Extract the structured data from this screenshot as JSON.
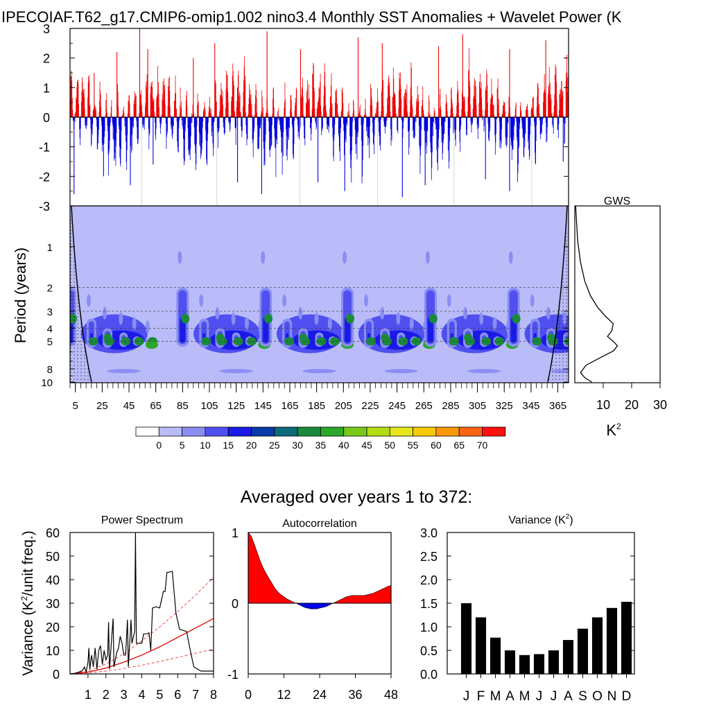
{
  "figure": {
    "title": "IPECOIAF.T62_g17.CMIP6-omip1.002 nino3.4 Monthly SST Anomalies + Wavelet Power (K",
    "subtitle": "Averaged over years 1 to 372:"
  },
  "colors": {
    "positive": "#ee0000",
    "negative": "#0000dd",
    "wavelet_levels": [
      "#ffffff",
      "#b9bcf8",
      "#8a8ef2",
      "#5050f0",
      "#1a1ae6",
      "#0a3aa8",
      "#0f6a7a",
      "#1a8a3a",
      "#2aa82a",
      "#7ac81a",
      "#b4dc14",
      "#e6e61a",
      "#f8c80a",
      "#f89808",
      "#f86410",
      "#ff1010"
    ]
  },
  "chart_data": [
    {
      "id": "anomaly",
      "type": "bar",
      "title": "",
      "xlabel": "",
      "ylabel": "",
      "ylim": [
        -3,
        3
      ],
      "yticks": [
        3,
        2,
        1,
        0,
        -1,
        -2,
        -3
      ],
      "xlim": [
        0,
        372
      ],
      "series": [
        {
          "values_note": "monthly nino3.4 SST anomaly bars, red positive / blue negative, dense oscillation with ~60 yr quasi-period",
          "peaks": [
            [
              18,
              1.5
            ],
            [
              35,
              2.2
            ],
            [
              52,
              3.0
            ],
            [
              58,
              2.3
            ],
            [
              92,
              2.0
            ],
            [
              108,
              2.5
            ],
            [
              147,
              2.9
            ],
            [
              172,
              2.3
            ],
            [
              215,
              2.7
            ],
            [
              233,
              2.5
            ],
            [
              275,
              2.4
            ],
            [
              293,
              2.8
            ],
            [
              328,
              2.3
            ],
            [
              355,
              2.6
            ]
          ],
          "troughs": [
            [
              3,
              -2.6
            ],
            [
              25,
              -2.0
            ],
            [
              45,
              -2.3
            ],
            [
              62,
              -1.6
            ],
            [
              125,
              -2.2
            ],
            [
              143,
              -2.6
            ],
            [
              185,
              -2.2
            ],
            [
              205,
              -2.5
            ],
            [
              248,
              -2.7
            ],
            [
              265,
              -2.3
            ],
            [
              310,
              -2.1
            ],
            [
              328,
              -2.5
            ],
            [
              368,
              -1.5
            ]
          ]
        }
      ]
    },
    {
      "id": "wavelet",
      "type": "heatmap",
      "xlabel": "",
      "ylabel": "Period (years)",
      "x_ticks": [
        "5",
        "25",
        "45",
        "65",
        "85",
        "105",
        "125",
        "145",
        "165",
        "185",
        "205",
        "225",
        "245",
        "265",
        "285",
        "305",
        "325",
        "345",
        "365"
      ],
      "y_ticks": [
        "1",
        "2",
        "3",
        "4",
        "5",
        "8",
        "10"
      ],
      "y_tick_values": [
        1,
        2,
        3,
        4,
        5,
        8,
        10
      ],
      "ylim": [
        0.5,
        10
      ],
      "log_y": true,
      "reference_periods": [
        2,
        3,
        4,
        5
      ],
      "colorbar_labels": [
        "0",
        "5",
        "10",
        "15",
        "20",
        "25",
        "30",
        "35",
        "40",
        "45",
        "50",
        "55",
        "60",
        "65",
        "70"
      ],
      "power_clusters_start_years": [
        1,
        73,
        135,
        196,
        258,
        320
      ],
      "power_peak_level": 35
    },
    {
      "id": "gws",
      "type": "line",
      "title": "GWS",
      "xlabel": "K",
      "x_ticks": [
        "10",
        "20",
        "30"
      ],
      "xlim": [
        0,
        30
      ],
      "points": [
        [
          0.3,
          0.5
        ],
        [
          1.0,
          0.9
        ],
        [
          2.0,
          1.3
        ],
        [
          3.5,
          1.8
        ],
        [
          5.5,
          2.3
        ],
        [
          8.0,
          2.8
        ],
        [
          11.0,
          3.3
        ],
        [
          13.5,
          3.7
        ],
        [
          13.0,
          4.2
        ],
        [
          11.5,
          4.6
        ],
        [
          13.5,
          5.0
        ],
        [
          15.0,
          5.4
        ],
        [
          13.5,
          5.9
        ],
        [
          9.0,
          6.6
        ],
        [
          4.0,
          7.5
        ],
        [
          2.0,
          8.5
        ],
        [
          3.5,
          9.3
        ],
        [
          6.0,
          10.0
        ]
      ]
    },
    {
      "id": "spectrum",
      "type": "line",
      "title": "Power Spectrum",
      "xlabel": "",
      "ylabel": "Variance (K",
      "ylabel_tail": "/unit freq.)",
      "ylim": [
        0,
        60
      ],
      "yticks": [
        "0",
        "10",
        "20",
        "30",
        "40",
        "50",
        "60"
      ],
      "xlim": [
        0,
        8
      ],
      "x_ticks": [
        "1",
        "2",
        "3",
        "4",
        "5",
        "6",
        "7",
        "8"
      ],
      "series": [
        {
          "name": "",
          "style": "black",
          "points": [
            [
              0.0,
              0.0
            ],
            [
              0.3,
              0.3
            ],
            [
              0.5,
              0.8
            ],
            [
              0.7,
              1.5
            ],
            [
              0.8,
              3.0
            ],
            [
              0.9,
              1.0
            ],
            [
              1.0,
              5.0
            ],
            [
              1.05,
              11.0
            ],
            [
              1.1,
              2.0
            ],
            [
              1.2,
              8.0
            ],
            [
              1.3,
              3.0
            ],
            [
              1.4,
              11.0
            ],
            [
              1.5,
              2.0
            ],
            [
              1.6,
              10.0
            ],
            [
              1.7,
              12.0
            ],
            [
              1.8,
              4.0
            ],
            [
              1.9,
              10.0
            ],
            [
              2.0,
              6.0
            ],
            [
              2.1,
              8.0
            ],
            [
              2.15,
              22.0
            ],
            [
              2.2,
              2.0
            ],
            [
              2.4,
              23.5
            ],
            [
              2.45,
              3.0
            ],
            [
              2.6,
              9.0
            ],
            [
              2.7,
              11.0
            ],
            [
              2.8,
              16.0
            ],
            [
              2.9,
              13.0
            ],
            [
              3.0,
              8.0
            ],
            [
              3.1,
              8.0
            ],
            [
              3.2,
              23.0
            ],
            [
              3.25,
              3.0
            ],
            [
              3.4,
              23.0
            ],
            [
              3.45,
              13.0
            ],
            [
              3.6,
              18.0
            ],
            [
              3.65,
              60.0
            ],
            [
              3.7,
              13.0
            ],
            [
              3.8,
              13.0
            ],
            [
              4.0,
              13.0
            ],
            [
              4.1,
              17.0
            ],
            [
              4.3,
              17.0
            ],
            [
              4.4,
              17.5
            ],
            [
              4.5,
              10.0
            ],
            [
              4.6,
              28.0
            ],
            [
              4.8,
              28.5
            ],
            [
              5.0,
              28.0
            ],
            [
              5.2,
              35.0
            ],
            [
              5.3,
              35.0
            ],
            [
              5.4,
              43.0
            ],
            [
              5.7,
              43.5
            ],
            [
              5.9,
              26.0
            ],
            [
              6.1,
              19.0
            ],
            [
              6.5,
              18.0
            ],
            [
              6.7,
              10.0
            ],
            [
              6.9,
              3.0
            ],
            [
              7.3,
              1.2
            ],
            [
              8.0,
              1.2
            ]
          ]
        },
        {
          "name": "",
          "style": "red",
          "points": [
            [
              0,
              0
            ],
            [
              1,
              0.8
            ],
            [
              2,
              2.5
            ],
            [
              3,
              5.0
            ],
            [
              4,
              8.0
            ],
            [
              5,
              11.5
            ],
            [
              6,
              15.5
            ],
            [
              7,
              19.5
            ],
            [
              8,
              23.5
            ]
          ]
        },
        {
          "name": "",
          "style": "red-dash-upper",
          "points": [
            [
              0,
              0
            ],
            [
              1,
              1.3
            ],
            [
              2,
              4.2
            ],
            [
              3,
              8.5
            ],
            [
              4,
              14.0
            ],
            [
              5,
              20.0
            ],
            [
              6,
              26.5
            ],
            [
              7,
              33.5
            ],
            [
              8,
              41.0
            ]
          ]
        },
        {
          "name": "",
          "style": "red-dash-lower",
          "points": [
            [
              0,
              0
            ],
            [
              1,
              0.4
            ],
            [
              2,
              1.2
            ],
            [
              3,
              2.3
            ],
            [
              4,
              3.7
            ],
            [
              5,
              5.3
            ],
            [
              6,
              7.0
            ],
            [
              7,
              8.8
            ],
            [
              8,
              10.5
            ]
          ]
        }
      ]
    },
    {
      "id": "autocorr",
      "type": "area",
      "title": "Autocorrelation",
      "ylim": [
        -1,
        1
      ],
      "yticks": [
        "1",
        "0",
        "-1"
      ],
      "xlim": [
        0,
        48
      ],
      "x_ticks": [
        "0",
        "12",
        "24",
        "36",
        "48"
      ],
      "values": [
        1.0,
        0.95,
        0.84,
        0.72,
        0.6,
        0.5,
        0.42,
        0.35,
        0.28,
        0.21,
        0.16,
        0.12,
        0.09,
        0.06,
        0.04,
        0.02,
        0.0,
        -0.02,
        -0.04,
        -0.06,
        -0.07,
        -0.08,
        -0.08,
        -0.08,
        -0.07,
        -0.06,
        -0.05,
        -0.03,
        -0.01,
        0.01,
        0.03,
        0.05,
        0.07,
        0.09,
        0.1,
        0.11,
        0.11,
        0.11,
        0.11,
        0.11,
        0.12,
        0.13,
        0.14,
        0.16,
        0.18,
        0.2,
        0.22,
        0.24,
        0.25
      ]
    },
    {
      "id": "variance",
      "type": "bar",
      "title": "Variance (K",
      "title_tail": ")",
      "ylim": [
        0,
        3
      ],
      "yticks": [
        "3.0",
        "2.5",
        "2.0",
        "1.5",
        "1.0",
        "0.5",
        "0.0"
      ],
      "categories": [
        "J",
        "F",
        "M",
        "A",
        "M",
        "J",
        "J",
        "A",
        "S",
        "O",
        "N",
        "D"
      ],
      "values": [
        1.5,
        1.2,
        0.77,
        0.5,
        0.4,
        0.42,
        0.5,
        0.72,
        0.96,
        1.2,
        1.4,
        1.53
      ]
    }
  ],
  "squared": "2"
}
